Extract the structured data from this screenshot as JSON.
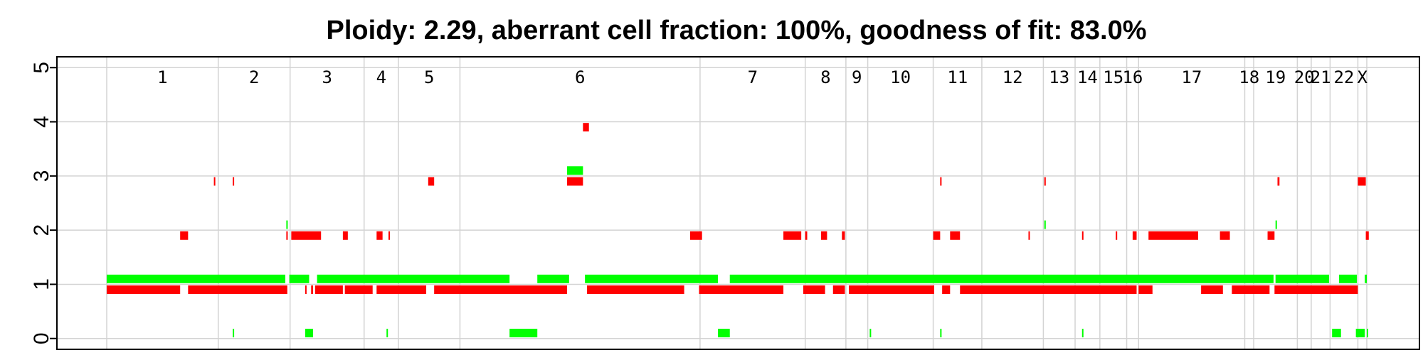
{
  "chart_data": {
    "type": "scatter",
    "title": "Ploidy: 2.29, aberrant cell fraction: 100%, goodness of fit: 83.0%",
    "xlabel": "",
    "ylabel": "",
    "ylim": [
      -0.2,
      5.2
    ],
    "yticks": [
      0,
      1,
      2,
      3,
      4,
      5
    ],
    "grid": true,
    "chromosomes": [
      {
        "name": "1",
        "start": 0.0,
        "end": 5.62
      },
      {
        "name": "2",
        "start": 5.62,
        "end": 9.24
      },
      {
        "name": "3",
        "start": 9.24,
        "end": 12.97
      },
      {
        "name": "4",
        "start": 12.97,
        "end": 14.7
      },
      {
        "name": "5",
        "start": 14.7,
        "end": 17.8
      },
      {
        "name": "6",
        "start": 17.8,
        "end": 29.9
      },
      {
        "name": "7",
        "start": 29.9,
        "end": 35.2
      },
      {
        "name": "8",
        "start": 35.2,
        "end": 37.25
      },
      {
        "name": "9",
        "start": 37.25,
        "end": 38.35
      },
      {
        "name": "10",
        "start": 38.35,
        "end": 41.65
      },
      {
        "name": "11",
        "start": 41.65,
        "end": 44.1
      },
      {
        "name": "12",
        "start": 44.1,
        "end": 47.2
      },
      {
        "name": "13",
        "start": 47.2,
        "end": 48.8
      },
      {
        "name": "14",
        "start": 48.8,
        "end": 50.05
      },
      {
        "name": "15",
        "start": 50.05,
        "end": 51.4
      },
      {
        "name": "16",
        "start": 51.4,
        "end": 52.0
      },
      {
        "name": "17",
        "start": 52.0,
        "end": 57.35
      },
      {
        "name": "18",
        "start": 57.35,
        "end": 57.8
      },
      {
        "name": "19",
        "start": 57.8,
        "end": 60.0
      },
      {
        "name": "20",
        "start": 60.0,
        "end": 60.7
      },
      {
        "name": "21",
        "start": 60.7,
        "end": 61.65
      },
      {
        "name": "22",
        "start": 61.65,
        "end": 63.05
      },
      {
        "name": "X",
        "start": 63.05,
        "end": 63.5
      }
    ],
    "series": [
      {
        "color": "#00ff00",
        "offset": 0.1,
        "segments": [
          [
            0.0,
            9.0,
            1
          ],
          [
            9.2,
            10.2,
            1
          ],
          [
            10.6,
            20.3,
            1
          ],
          [
            21.7,
            23.3,
            1
          ],
          [
            24.1,
            30.8,
            1
          ],
          [
            31.4,
            58.8,
            1
          ],
          [
            58.9,
            61.6,
            1
          ],
          [
            62.1,
            63.0,
            1
          ],
          [
            63.4,
            63.5,
            1
          ],
          [
            9.05,
            9.1,
            2
          ],
          [
            47.25,
            47.3,
            2
          ],
          [
            58.9,
            58.95,
            2
          ],
          [
            23.2,
            24.0,
            3
          ],
          [
            6.35,
            6.4,
            0
          ],
          [
            10.0,
            10.4,
            0
          ],
          [
            14.1,
            14.15,
            0
          ],
          [
            20.3,
            21.7,
            0
          ],
          [
            30.8,
            31.4,
            0
          ],
          [
            38.45,
            38.5,
            0
          ],
          [
            42.0,
            42.05,
            0
          ],
          [
            49.15,
            49.2,
            0
          ],
          [
            61.75,
            62.2,
            0
          ],
          [
            62.95,
            63.4,
            0
          ],
          [
            63.5,
            63.55,
            0
          ]
        ]
      },
      {
        "color": "#ff0000",
        "offset": -0.1,
        "segments": [
          [
            0.0,
            3.7,
            1
          ],
          [
            4.1,
            9.1,
            1
          ],
          [
            10.0,
            10.05,
            1
          ],
          [
            10.3,
            10.4,
            1
          ],
          [
            10.5,
            11.9,
            1
          ],
          [
            12.0,
            13.4,
            1
          ],
          [
            13.6,
            16.1,
            1
          ],
          [
            16.5,
            23.2,
            1
          ],
          [
            24.2,
            29.1,
            1
          ],
          [
            29.85,
            34.1,
            1
          ],
          [
            35.1,
            36.2,
            1
          ],
          [
            36.6,
            37.2,
            1
          ],
          [
            37.4,
            41.7,
            1
          ],
          [
            42.1,
            42.5,
            1
          ],
          [
            43.0,
            51.9,
            1
          ],
          [
            52.0,
            52.7,
            1
          ],
          [
            55.15,
            56.25,
            1
          ],
          [
            56.7,
            58.6,
            1
          ],
          [
            58.85,
            63.05,
            1
          ],
          [
            3.7,
            4.1,
            2
          ],
          [
            9.05,
            9.1,
            2
          ],
          [
            9.3,
            10.8,
            2
          ],
          [
            11.9,
            12.15,
            2
          ],
          [
            13.6,
            13.9,
            2
          ],
          [
            14.2,
            14.25,
            2
          ],
          [
            29.4,
            30.0,
            2
          ],
          [
            34.1,
            35.0,
            2
          ],
          [
            35.2,
            35.3,
            2
          ],
          [
            36.0,
            36.3,
            2
          ],
          [
            37.05,
            37.2,
            2
          ],
          [
            41.65,
            42.0,
            2
          ],
          [
            42.5,
            43.0,
            2
          ],
          [
            46.45,
            46.5,
            2
          ],
          [
            49.15,
            49.2,
            2
          ],
          [
            50.85,
            50.9,
            2
          ],
          [
            51.7,
            51.9,
            2
          ],
          [
            52.5,
            55.0,
            2
          ],
          [
            56.1,
            56.6,
            2
          ],
          [
            58.5,
            58.85,
            2
          ],
          [
            63.45,
            63.6,
            2
          ],
          [
            5.4,
            5.45,
            3
          ],
          [
            6.35,
            6.4,
            3
          ],
          [
            16.2,
            16.5,
            3
          ],
          [
            23.2,
            24.0,
            3
          ],
          [
            42.0,
            42.05,
            3
          ],
          [
            47.25,
            47.3,
            3
          ],
          [
            59.0,
            59.1,
            3
          ],
          [
            63.05,
            63.45,
            3
          ],
          [
            24.0,
            24.3,
            4
          ]
        ]
      }
    ]
  }
}
